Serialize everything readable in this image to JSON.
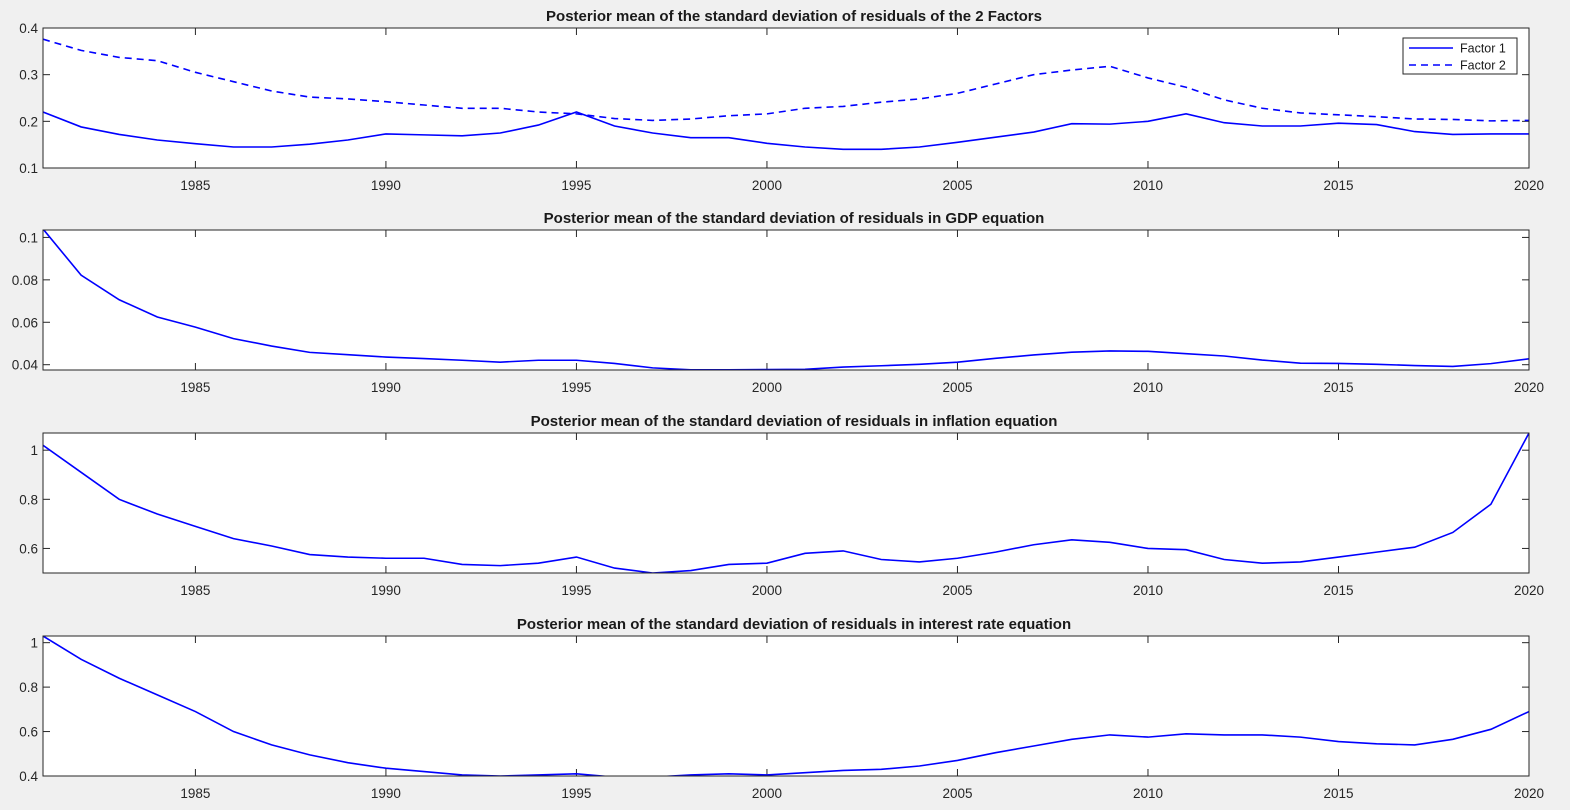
{
  "figure": {
    "background": "#f0f0f0",
    "axes_background": "#ffffff",
    "line_color": "#0000ff"
  },
  "chart_data": [
    {
      "type": "line",
      "title": "Posterior mean of the standard deviation of residuals of the 2 Factors",
      "xlabel": "",
      "ylabel": "",
      "xlim": [
        1981,
        2020
      ],
      "ylim": [
        0.1,
        0.4
      ],
      "xticks": [
        1985,
        1990,
        1995,
        2000,
        2005,
        2010,
        2015,
        2020
      ],
      "yticks": [
        0.1,
        0.2,
        0.3,
        0.4
      ],
      "ytick_labels": [
        "0.1",
        "0.2",
        "0.3",
        "0.4"
      ],
      "legend": "top-right",
      "x": [
        1981,
        1982,
        1983,
        1984,
        1985,
        1986,
        1987,
        1988,
        1989,
        1990,
        1991,
        1992,
        1993,
        1994,
        1995,
        1996,
        1997,
        1998,
        1999,
        2000,
        2001,
        2002,
        2003,
        2004,
        2005,
        2006,
        2007,
        2008,
        2009,
        2010,
        2011,
        2012,
        2013,
        2014,
        2015,
        2016,
        2017,
        2018,
        2019,
        2020
      ],
      "series": [
        {
          "name": "Factor 1",
          "style": "solid",
          "values": [
            0.22,
            0.188,
            0.172,
            0.16,
            0.152,
            0.145,
            0.145,
            0.151,
            0.16,
            0.173,
            0.171,
            0.169,
            0.175,
            0.192,
            0.22,
            0.19,
            0.175,
            0.165,
            0.165,
            0.153,
            0.145,
            0.14,
            0.14,
            0.145,
            0.155,
            0.166,
            0.177,
            0.195,
            0.194,
            0.2,
            0.216,
            0.197,
            0.19,
            0.19,
            0.196,
            0.193,
            0.178,
            0.172,
            0.173,
            0.173
          ]
        },
        {
          "name": "Factor 2",
          "style": "dashed",
          "values": [
            0.376,
            0.352,
            0.337,
            0.33,
            0.305,
            0.285,
            0.265,
            0.252,
            0.248,
            0.242,
            0.235,
            0.228,
            0.228,
            0.22,
            0.216,
            0.206,
            0.202,
            0.205,
            0.212,
            0.216,
            0.228,
            0.232,
            0.241,
            0.248,
            0.26,
            0.28,
            0.3,
            0.31,
            0.318,
            0.293,
            0.273,
            0.246,
            0.228,
            0.218,
            0.214,
            0.21,
            0.205,
            0.204,
            0.201,
            0.202
          ]
        }
      ]
    },
    {
      "type": "line",
      "title": "Posterior mean of the standard deviation of residuals in GDP equation",
      "xlabel": "",
      "ylabel": "",
      "xlim": [
        1981,
        2020
      ],
      "ylim": [
        0.0375,
        0.1035
      ],
      "xticks": [
        1985,
        1990,
        1995,
        2000,
        2005,
        2010,
        2015,
        2020
      ],
      "yticks": [
        0.04,
        0.06,
        0.08,
        0.1
      ],
      "ytick_labels": [
        "0.04",
        "0.06",
        "0.08",
        "0.1"
      ],
      "x": [
        1981,
        1982,
        1983,
        1984,
        1985,
        1986,
        1987,
        1988,
        1989,
        1990,
        1991,
        1992,
        1993,
        1994,
        1995,
        1996,
        1997,
        1998,
        1999,
        2000,
        2001,
        2002,
        2003,
        2004,
        2005,
        2006,
        2007,
        2008,
        2009,
        2010,
        2011,
        2012,
        2013,
        2014,
        2015,
        2016,
        2017,
        2018,
        2019,
        2020
      ],
      "series": [
        {
          "style": "solid",
          "values": [
            0.104,
            0.0822,
            0.0706,
            0.0625,
            0.0577,
            0.0523,
            0.0488,
            0.0458,
            0.0447,
            0.0436,
            0.0429,
            0.0421,
            0.0412,
            0.0421,
            0.0421,
            0.0406,
            0.0385,
            0.0376,
            0.0376,
            0.0377,
            0.0378,
            0.0389,
            0.0395,
            0.0402,
            0.0412,
            0.043,
            0.0446,
            0.0459,
            0.0465,
            0.0463,
            0.0452,
            0.0441,
            0.0422,
            0.0407,
            0.0406,
            0.0402,
            0.0396,
            0.0392,
            0.0405,
            0.0428
          ]
        }
      ]
    },
    {
      "type": "line",
      "title": "Posterior mean of the standard deviation of residuals in inflation equation",
      "xlabel": "",
      "ylabel": "",
      "xlim": [
        1981,
        2020
      ],
      "ylim": [
        0.5,
        1.07
      ],
      "xticks": [
        1985,
        1990,
        1995,
        2000,
        2005,
        2010,
        2015,
        2020
      ],
      "yticks": [
        0.6,
        0.8,
        1.0
      ],
      "ytick_labels": [
        "0.6",
        "0.8",
        "1"
      ],
      "x": [
        1981,
        1982,
        1983,
        1984,
        1985,
        1986,
        1987,
        1988,
        1989,
        1990,
        1991,
        1992,
        1993,
        1994,
        1995,
        1996,
        1997,
        1998,
        1999,
        2000,
        2001,
        2002,
        2003,
        2004,
        2005,
        2006,
        2007,
        2008,
        2009,
        2010,
        2011,
        2012,
        2013,
        2014,
        2015,
        2016,
        2017,
        2018,
        2019,
        2020
      ],
      "series": [
        {
          "style": "solid",
          "values": [
            1.02,
            0.91,
            0.8,
            0.74,
            0.69,
            0.64,
            0.61,
            0.575,
            0.565,
            0.56,
            0.56,
            0.535,
            0.53,
            0.54,
            0.565,
            0.52,
            0.5,
            0.51,
            0.535,
            0.54,
            0.58,
            0.59,
            0.555,
            0.545,
            0.56,
            0.585,
            0.615,
            0.635,
            0.625,
            0.6,
            0.595,
            0.555,
            0.54,
            0.545,
            0.565,
            0.585,
            0.605,
            0.665,
            0.78,
            1.07
          ]
        }
      ]
    },
    {
      "type": "line",
      "title": "Posterior mean of the standard deviation of residuals in interest rate equation",
      "xlabel": "",
      "ylabel": "",
      "xlim": [
        1981,
        2020
      ],
      "ylim": [
        0.4,
        1.03
      ],
      "xticks": [
        1985,
        1990,
        1995,
        2000,
        2005,
        2010,
        2015,
        2020
      ],
      "yticks": [
        0.4,
        0.6,
        0.8,
        1.0
      ],
      "ytick_labels": [
        "0.4",
        "0.6",
        "0.8",
        "1"
      ],
      "x": [
        1981,
        1982,
        1983,
        1984,
        1985,
        1986,
        1987,
        1988,
        1989,
        1990,
        1991,
        1992,
        1993,
        1994,
        1995,
        1996,
        1997,
        1998,
        1999,
        2000,
        2001,
        2002,
        2003,
        2004,
        2005,
        2006,
        2007,
        2008,
        2009,
        2010,
        2011,
        2012,
        2013,
        2014,
        2015,
        2016,
        2017,
        2018,
        2019,
        2020
      ],
      "series": [
        {
          "style": "solid",
          "values": [
            1.03,
            0.925,
            0.84,
            0.765,
            0.69,
            0.6,
            0.54,
            0.495,
            0.46,
            0.435,
            0.42,
            0.405,
            0.4,
            0.405,
            0.41,
            0.395,
            0.395,
            0.405,
            0.41,
            0.405,
            0.415,
            0.425,
            0.43,
            0.445,
            0.47,
            0.505,
            0.535,
            0.565,
            0.585,
            0.575,
            0.59,
            0.585,
            0.585,
            0.575,
            0.555,
            0.545,
            0.54,
            0.565,
            0.61,
            0.69
          ]
        }
      ]
    }
  ]
}
